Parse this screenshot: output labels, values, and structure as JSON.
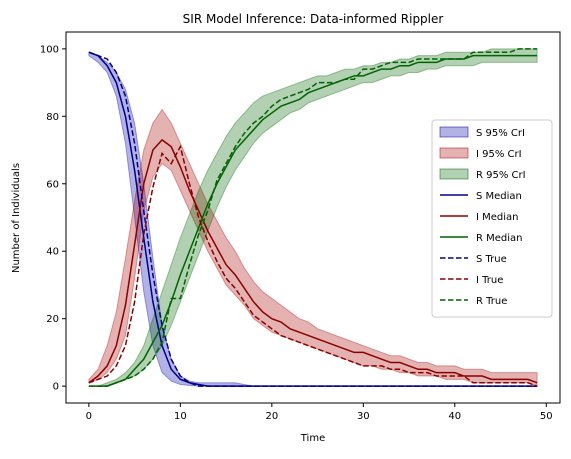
{
  "chart_data": {
    "type": "line",
    "title": "SIR Model Inference: Data-informed Rippler",
    "xlabel": "Time",
    "ylabel": "Number of Individuals",
    "xlim": [
      -2.5,
      51.5
    ],
    "ylim": [
      -5,
      105
    ],
    "xticks": [
      0,
      10,
      20,
      30,
      40,
      50
    ],
    "yticks": [
      0,
      20,
      40,
      60,
      80,
      100
    ],
    "grid": false,
    "legend_position": "center-right",
    "x": [
      0,
      1,
      2,
      3,
      4,
      5,
      6,
      7,
      8,
      9,
      10,
      11,
      12,
      13,
      14,
      15,
      16,
      17,
      18,
      19,
      20,
      21,
      22,
      23,
      24,
      25,
      26,
      27,
      28,
      29,
      30,
      31,
      32,
      33,
      34,
      35,
      36,
      37,
      38,
      39,
      40,
      41,
      42,
      43,
      44,
      45,
      46,
      47,
      48,
      49
    ],
    "bands": [
      {
        "name": "S 95% CrI",
        "color": "#0000aa",
        "lower": [
          98,
          96,
          93,
          86,
          72,
          50,
          28,
          12,
          4,
          1.5,
          0.5,
          0.2,
          0,
          0,
          0,
          0,
          0,
          0,
          0,
          0,
          0,
          0,
          0,
          0,
          0,
          0,
          0,
          0,
          0,
          0,
          0,
          0,
          0,
          0,
          0,
          0,
          0,
          0,
          0,
          0,
          0,
          0,
          0,
          0,
          0,
          0,
          0,
          0,
          0,
          0
        ],
        "upper": [
          99,
          98,
          96,
          93,
          88,
          78,
          60,
          38,
          18,
          8,
          3,
          1.5,
          1,
          1,
          1,
          1,
          1,
          0.5,
          0,
          0,
          0,
          0,
          0,
          0,
          0,
          0,
          0,
          0,
          0,
          0,
          0,
          0,
          0,
          0,
          0,
          0,
          0,
          0,
          0,
          0,
          0,
          0,
          0,
          0,
          0,
          0,
          0,
          0,
          0,
          0
        ]
      },
      {
        "name": "I 95% CrI",
        "color": "#aa0000",
        "lower": [
          1,
          2,
          4,
          8,
          15,
          32,
          52,
          62,
          66,
          64,
          58,
          52,
          46,
          40,
          35,
          30,
          27,
          24,
          20,
          18,
          16,
          15,
          14,
          13,
          12,
          11,
          10,
          9,
          8,
          7,
          6,
          6,
          5,
          5,
          4,
          4,
          3,
          3,
          3,
          2,
          2,
          2,
          1,
          1,
          1,
          1,
          1,
          1,
          1,
          0
        ],
        "upper": [
          2,
          5,
          12,
          22,
          38,
          55,
          70,
          78,
          82,
          78,
          72,
          66,
          60,
          54,
          49,
          44,
          40,
          35,
          31,
          28,
          26,
          24,
          22,
          20,
          19,
          17,
          16,
          15,
          14,
          13,
          12,
          11,
          10,
          9,
          9,
          8,
          7,
          7,
          6,
          6,
          6,
          5,
          5,
          5,
          4,
          4,
          4,
          4,
          4,
          4
        ]
      },
      {
        "name": "R 95% CrI",
        "color": "#006400",
        "lower": [
          0,
          0,
          0,
          1,
          2,
          3,
          5,
          8,
          12,
          18,
          25,
          32,
          39,
          46,
          53,
          59,
          64,
          68,
          72,
          75,
          77,
          79,
          81,
          82,
          84,
          85,
          86,
          87,
          88,
          89,
          90,
          90,
          91,
          92,
          92,
          93,
          93,
          94,
          94,
          95,
          95,
          95,
          95,
          96,
          96,
          96,
          96,
          96,
          96,
          96
        ],
        "upper": [
          0,
          0,
          1,
          2,
          4,
          7,
          12,
          20,
          28,
          36,
          44,
          51,
          58,
          64,
          69,
          74,
          78,
          81,
          84,
          86,
          87,
          88,
          89,
          90,
          91,
          92,
          92,
          93,
          94,
          94,
          95,
          95,
          96,
          96,
          97,
          97,
          98,
          98,
          98,
          99,
          99,
          99,
          99,
          99,
          100,
          100,
          100,
          100,
          100,
          100
        ]
      }
    ],
    "series": [
      {
        "name": "S Median",
        "color": "#00008b",
        "dash": false,
        "values": [
          99,
          98,
          95,
          90,
          80,
          64,
          44,
          25,
          12,
          5,
          2,
          1,
          0.5,
          0,
          0,
          0,
          0,
          0,
          0,
          0,
          0,
          0,
          0,
          0,
          0,
          0,
          0,
          0,
          0,
          0,
          0,
          0,
          0,
          0,
          0,
          0,
          0,
          0,
          0,
          0,
          0,
          0,
          0,
          0,
          0,
          0,
          0,
          0,
          0,
          0
        ]
      },
      {
        "name": "I Median",
        "color": "#8b0000",
        "dash": false,
        "values": [
          1,
          3,
          6,
          12,
          24,
          42,
          60,
          70,
          73,
          71,
          65,
          58,
          52,
          46,
          41,
          36,
          33,
          29,
          25,
          22,
          20,
          19,
          17,
          16,
          15,
          14,
          13,
          12,
          11,
          10,
          10,
          9,
          8,
          7,
          7,
          6,
          5,
          5,
          4,
          4,
          4,
          3,
          3,
          3,
          2,
          2,
          2,
          2,
          2,
          1
        ]
      },
      {
        "name": "R Median",
        "color": "#006400",
        "dash": false,
        "values": [
          0,
          0,
          0,
          1,
          2,
          5,
          8,
          13,
          18,
          25,
          33,
          40,
          47,
          54,
          60,
          65,
          70,
          73,
          76,
          79,
          81,
          83,
          84,
          85,
          87,
          88,
          89,
          90,
          91,
          92,
          92,
          93,
          94,
          94,
          95,
          95,
          96,
          96,
          96,
          97,
          97,
          97,
          98,
          98,
          98,
          98,
          98,
          98,
          98,
          98
        ]
      },
      {
        "name": "S True",
        "color": "#00008b",
        "dash": true,
        "values": [
          99,
          98,
          97,
          93,
          86,
          72,
          52,
          33,
          18,
          8,
          3,
          1,
          0,
          0,
          0,
          0,
          0,
          0,
          0,
          0,
          0,
          0,
          0,
          0,
          0,
          0,
          0,
          0,
          0,
          0,
          0,
          0,
          0,
          0,
          0,
          0,
          0,
          0,
          0,
          0,
          0,
          0,
          0,
          0,
          0,
          0,
          0,
          0,
          0,
          0
        ]
      },
      {
        "name": "I True",
        "color": "#8b0000",
        "dash": true,
        "values": [
          1,
          2,
          3,
          6,
          12,
          25,
          45,
          59,
          69,
          66,
          71,
          60,
          50,
          43,
          37,
          32,
          29,
          25,
          21,
          19,
          17,
          15,
          14,
          13,
          12,
          11,
          10,
          9,
          8,
          7,
          6,
          6,
          6,
          5,
          5,
          4,
          4,
          4,
          3,
          3,
          3,
          3,
          1,
          1,
          1,
          1,
          1,
          1,
          1,
          0
        ]
      },
      {
        "name": "R True",
        "color": "#006400",
        "dash": true,
        "values": [
          0,
          0,
          0,
          1,
          2,
          3,
          5,
          8,
          13,
          26,
          26,
          36,
          45,
          52,
          61,
          66,
          71,
          75,
          78,
          80,
          83,
          85,
          86,
          87,
          88,
          90,
          90,
          90,
          91,
          91,
          94,
          94,
          95,
          96,
          96,
          96,
          97,
          97,
          97,
          97,
          97,
          97,
          99,
          99,
          99,
          99,
          99,
          100,
          100,
          100
        ]
      }
    ]
  }
}
